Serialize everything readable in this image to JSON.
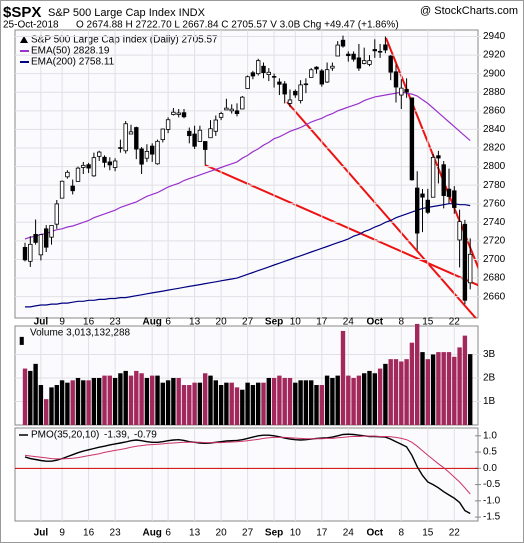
{
  "chart_data": [
    {
      "type": "candlestick",
      "title": "$SPX",
      "subtitle": "S&P 500 Large Cap Index INDX",
      "source": "@ StockCharts.com",
      "date": "25-Oct-2018",
      "quote": "O 2674.88 H 2722.70 L 2667.84 C 2705.57 V 3.0B Chg +49.47 (+1.86%)",
      "legend": "S&P 500 Large Cap Index (Daily) 2705.57",
      "categories": [
        null,
        null,
        null,
        "Jul",
        null,
        null,
        null,
        "9",
        null,
        null,
        null,
        null,
        "16",
        null,
        null,
        null,
        null,
        "23",
        null,
        null,
        null,
        null,
        null,
        null,
        "Aug",
        null,
        null,
        "6",
        null,
        null,
        null,
        null,
        "13",
        null,
        null,
        null,
        null,
        "20",
        null,
        null,
        null,
        null,
        "27",
        null,
        null,
        null,
        null,
        "Sep",
        null,
        null,
        null,
        "10",
        null,
        null,
        null,
        null,
        "17",
        null,
        null,
        null,
        null,
        "24",
        null,
        null,
        null,
        null,
        "Oct",
        null,
        null,
        null,
        null,
        "8",
        null,
        null,
        null,
        null,
        "15",
        null,
        null,
        null,
        null,
        "22",
        null,
        null,
        null
      ],
      "open": [
        2713,
        2698,
        2727,
        2705,
        2733,
        2724,
        2738,
        2766,
        2789,
        2779,
        2784,
        2799,
        2802,
        2790,
        2811,
        2810,
        2805,
        2799,
        2820,
        2817,
        2835,
        2842,
        2819,
        2809,
        2822,
        2803,
        2829,
        2840,
        2856,
        2856,
        2858,
        2838,
        2835,
        2827,
        2827,
        2831,
        2838,
        2853,
        2861,
        2860,
        2860,
        2862,
        2884,
        2901,
        2900,
        2908,
        2899,
        2897,
        2891,
        2889,
        2868,
        2881,
        2871,
        2889,
        2896,
        2907,
        2903,
        2891,
        2906,
        2919,
        2936,
        2921,
        2921,
        2917,
        2911,
        2910,
        2926,
        2924,
        2931,
        2919,
        2902,
        2877,
        2883,
        2873.9,
        2776.9,
        2770.5,
        2763.8,
        2767,
        2811.7,
        2802,
        2775.7,
        2773.9,
        2721,
        2737.9,
        2674.88
      ],
      "high": [
        2718,
        2725,
        2743,
        2727,
        2737,
        2737,
        2764,
        2785,
        2796,
        2786,
        2800,
        2805,
        2804,
        2815,
        2817,
        2812,
        2810,
        2809,
        2829,
        2849,
        2845,
        2843,
        2821,
        2824,
        2825,
        2829,
        2841,
        2853,
        2863,
        2862,
        2862,
        2842,
        2844,
        2844,
        2827,
        2850,
        2855,
        2859,
        2873,
        2867,
        2868,
        2876,
        2898,
        2903,
        2916,
        2912,
        2906,
        2900,
        2895,
        2892,
        2883,
        2883,
        2893,
        2895,
        2906,
        2908,
        2905,
        2912,
        2912,
        2935,
        2941,
        2924,
        2924,
        2932,
        2928,
        2920,
        2937,
        2932,
        2940,
        2920,
        2910,
        2894,
        2895,
        2874,
        2795,
        2775.8,
        2776,
        2813.5,
        2816.9,
        2806,
        2797.8,
        2778.9,
        2753.6,
        2742.6,
        2722.7
      ],
      "low": [
        2698,
        2692,
        2716,
        2699,
        2708,
        2716,
        2733,
        2766,
        2787,
        2770,
        2784,
        2792,
        2793,
        2789,
        2806,
        2799,
        2796,
        2795,
        2815,
        2814,
        2835,
        2808,
        2792,
        2805,
        2805,
        2802,
        2826,
        2836,
        2855,
        2853,
        2852,
        2825,
        2819,
        2827,
        2802,
        2831,
        2833,
        2850,
        2861,
        2857,
        2854,
        2862,
        2884,
        2894,
        2898,
        2895,
        2892,
        2885,
        2877,
        2868,
        2864,
        2874,
        2868,
        2879,
        2896,
        2900,
        2886,
        2890,
        2903,
        2919,
        2928,
        2913,
        2913,
        2903,
        2910,
        2908,
        2917,
        2917,
        2922,
        2893,
        2869,
        2862,
        2874,
        2784.9,
        2710.5,
        2729.4,
        2749,
        2766.9,
        2781.8,
        2755,
        2760.3,
        2749.2,
        2691.4,
        2651.9,
        2667.84
      ],
      "close": [
        2699.6,
        2716.3,
        2718.4,
        2726.7,
        2713.2,
        2736.6,
        2759.8,
        2784.2,
        2793.8,
        2774.0,
        2798.3,
        2801.3,
        2798.4,
        2809.6,
        2815.6,
        2804.5,
        2801.8,
        2806.0,
        2820.4,
        2846.1,
        2837.4,
        2818.8,
        2802.6,
        2816.3,
        2813.4,
        2827.2,
        2840.4,
        2850.4,
        2858.5,
        2857.7,
        2853.6,
        2833.3,
        2821.9,
        2839.1,
        2818.4,
        2840.7,
        2850.1,
        2857.1,
        2862.9,
        2861.8,
        2857.0,
        2874.7,
        2896.7,
        2897.5,
        2914.0,
        2901.1,
        2901.5,
        2896.7,
        2888.6,
        2878.1,
        2871.7,
        2877.1,
        2887.9,
        2888.9,
        2904.2,
        2905.0,
        2888.8,
        2904.3,
        2908.0,
        2930.8,
        2929.7,
        2919.4,
        2915.6,
        2906.0,
        2914.0,
        2914.0,
        2924.6,
        2923.4,
        2925.5,
        2901.6,
        2885.6,
        2884.4,
        2880.3,
        2785.7,
        2728.4,
        2767.1,
        2750.8,
        2809.9,
        2809.2,
        2768.8,
        2767.8,
        2755.9,
        2740.7,
        2656.1,
        2705.57
      ],
      "series": [
        {
          "name": "EMA(50) 2828.19",
          "color": "#9933cc",
          "values": [
            2722,
            2724,
            2725,
            2727,
            2728,
            2730,
            2732,
            2733,
            2735,
            2736,
            2738,
            2740,
            2742,
            2745,
            2747,
            2749,
            2751,
            2753,
            2756,
            2758,
            2760,
            2762,
            2765,
            2768,
            2770,
            2772,
            2775,
            2778,
            2780,
            2782,
            2785,
            2787,
            2789,
            2791,
            2793,
            2795,
            2797,
            2799,
            2801,
            2803,
            2805,
            2809,
            2812,
            2816,
            2819,
            2823,
            2826,
            2830,
            2832,
            2835,
            2838,
            2840,
            2842,
            2845,
            2848,
            2850,
            2852,
            2855,
            2857,
            2860,
            2862,
            2864,
            2866,
            2868,
            2871,
            2873,
            2875,
            2876,
            2877,
            2878,
            2879,
            2880,
            2879,
            2878,
            2876,
            2872,
            2868,
            2863,
            2858,
            2853,
            2848,
            2843,
            2838,
            2833,
            2828
          ]
        },
        {
          "name": "EMA(200) 2758.11",
          "color": "#000080",
          "values": [
            2649,
            2649,
            2650,
            2651,
            2651,
            2652,
            2652,
            2653,
            2653,
            2654,
            2655,
            2655,
            2656,
            2656,
            2657,
            2657,
            2658,
            2658,
            2659,
            2659,
            2660,
            2661,
            2662,
            2663,
            2664,
            2665,
            2666,
            2667,
            2668,
            2669,
            2670,
            2671,
            2672,
            2673,
            2674,
            2675,
            2676,
            2677,
            2678,
            2679,
            2680,
            2682,
            2684,
            2686,
            2688,
            2690,
            2692,
            2694,
            2696,
            2698,
            2700,
            2702,
            2704,
            2706,
            2708,
            2710,
            2712,
            2714,
            2716,
            2718,
            2720,
            2722,
            2725,
            2727,
            2730,
            2732,
            2735,
            2737,
            2740,
            2742,
            2745,
            2747,
            2749,
            2751,
            2753,
            2755,
            2756,
            2757,
            2758,
            2759,
            2760,
            2760,
            2759,
            2759,
            2758
          ]
        }
      ],
      "ylim": [
        2637,
        2947
      ],
      "yticks": [
        2660,
        2680,
        2700,
        2720,
        2740,
        2760,
        2780,
        2800,
        2820,
        2840,
        2860,
        2880,
        2900,
        2920,
        2940
      ],
      "grid": true
    },
    {
      "type": "bar",
      "title": "Volume 3,013,132,288",
      "up_color": "#000000",
      "down_color": "#a3285c",
      "values": [
        2400000000,
        2300000000,
        2600000000,
        1700000000,
        1100000000,
        1600000000,
        1700000000,
        1900000000,
        1800000000,
        1900000000,
        2000000000,
        1900000000,
        1900000000,
        2000000000,
        2000000000,
        2100000000,
        2100000000,
        2000000000,
        2200000000,
        2300000000,
        2100000000,
        2300000000,
        2200000000,
        2000000000,
        2100000000,
        2100000000,
        1800000000,
        1900000000,
        2000000000,
        2000000000,
        1700000000,
        1700000000,
        1800000000,
        1800000000,
        2200000000,
        2100000000,
        1900000000,
        1700000000,
        1800000000,
        1800000000,
        1600000000,
        1500000000,
        1800000000,
        1700000000,
        1800000000,
        1800000000,
        2000000000,
        2000000000,
        2100000000,
        2000000000,
        2000000000,
        1800000000,
        1900000000,
        1900000000,
        1900000000,
        1700000000,
        1700000000,
        2100000000,
        2000000000,
        2100000000,
        4000000000,
        2100000000,
        2000000000,
        2100000000,
        2200000000,
        2300000000,
        2200000000,
        2400000000,
        2600000000,
        2800000000,
        2800000000,
        2700000000,
        2800000000,
        3500000000,
        4300000000,
        3100000000,
        2800000000,
        3000000000,
        3100000000,
        3100000000,
        3100000000,
        2900000000,
        3300000000,
        3800000000,
        3013132288
      ],
      "ylim": [
        0,
        4210000000
      ],
      "yticks": [
        {
          "value": 1000000000,
          "label": "1B"
        },
        {
          "value": 2000000000,
          "label": "2B"
        },
        {
          "value": 3000000000,
          "label": "3B"
        }
      ]
    },
    {
      "type": "line",
      "title": "PMO(35,20,10)",
      "categories": [
        null,
        null,
        null,
        "Jul",
        null,
        null,
        null,
        "9",
        null,
        null,
        null,
        null,
        "16",
        null,
        null,
        null,
        null,
        "23",
        null,
        null,
        null,
        null,
        null,
        null,
        "Aug",
        null,
        null,
        "6",
        null,
        null,
        null,
        null,
        "13",
        null,
        null,
        null,
        null,
        "20",
        null,
        null,
        null,
        null,
        "27",
        null,
        null,
        null,
        null,
        "Sep",
        null,
        null,
        null,
        "10",
        null,
        null,
        null,
        null,
        "17",
        null,
        null,
        null,
        null,
        "24",
        null,
        null,
        null,
        null,
        "Oct",
        null,
        null,
        null,
        null,
        "8",
        null,
        null,
        null,
        null,
        "15",
        null,
        null,
        null,
        null,
        "22",
        null,
        null,
        null
      ],
      "series": [
        {
          "name": "-1.39,",
          "color": "#000000",
          "values": [
            0.35,
            0.3,
            0.27,
            0.24,
            0.22,
            0.22,
            0.25,
            0.3,
            0.36,
            0.42,
            0.48,
            0.53,
            0.57,
            0.61,
            0.65,
            0.68,
            0.72,
            0.75,
            0.78,
            0.81,
            0.85,
            0.87,
            0.85,
            0.82,
            0.8,
            0.8,
            0.82,
            0.85,
            0.87,
            0.88,
            0.86,
            0.82,
            0.8,
            0.78,
            0.77,
            0.78,
            0.8,
            0.82,
            0.84,
            0.85,
            0.86,
            0.88,
            0.92,
            0.96,
            1.0,
            1.02,
            1.02,
            1.0,
            0.97,
            0.93,
            0.9,
            0.88,
            0.87,
            0.88,
            0.9,
            0.92,
            0.93,
            0.94,
            0.96,
            1.0,
            1.04,
            1.05,
            1.04,
            1.02,
            1.0,
            0.98,
            0.98,
            0.97,
            0.96,
            0.9,
            0.82,
            0.74,
            0.66,
            0.4,
            0.05,
            -0.22,
            -0.42,
            -0.5,
            -0.6,
            -0.72,
            -0.82,
            -0.92,
            -1.05,
            -1.3,
            -1.39
          ]
        },
        {
          "name": "-0.79",
          "color": "#cc3366",
          "values": [
            0.4,
            0.38,
            0.36,
            0.34,
            0.32,
            0.3,
            0.29,
            0.29,
            0.3,
            0.31,
            0.33,
            0.36,
            0.39,
            0.42,
            0.45,
            0.49,
            0.52,
            0.55,
            0.58,
            0.61,
            0.65,
            0.68,
            0.7,
            0.72,
            0.73,
            0.74,
            0.75,
            0.77,
            0.78,
            0.79,
            0.8,
            0.8,
            0.8,
            0.8,
            0.79,
            0.79,
            0.79,
            0.79,
            0.8,
            0.81,
            0.82,
            0.83,
            0.85,
            0.87,
            0.89,
            0.92,
            0.94,
            0.95,
            0.95,
            0.95,
            0.94,
            0.93,
            0.92,
            0.91,
            0.91,
            0.91,
            0.91,
            0.92,
            0.92,
            0.94,
            0.95,
            0.97,
            0.98,
            0.98,
            0.99,
            0.99,
            0.99,
            0.98,
            0.98,
            0.97,
            0.95,
            0.92,
            0.88,
            0.8,
            0.68,
            0.54,
            0.4,
            0.27,
            0.14,
            0.02,
            -0.12,
            -0.27,
            -0.42,
            -0.6,
            -0.79
          ]
        }
      ],
      "hline": 0,
      "hline_color": "#cc0000",
      "ylim": [
        -1.62,
        1.24
      ],
      "yticks": [
        {
          "value": 1.0,
          "label": "1.0"
        },
        {
          "value": 0.5,
          "label": "0.5"
        },
        {
          "value": 0.0,
          "label": "0.0"
        },
        {
          "value": -0.5,
          "label": "-0.5"
        },
        {
          "value": -1.0,
          "label": "-1.0"
        },
        {
          "value": -1.5,
          "label": "-1.5"
        }
      ]
    }
  ]
}
